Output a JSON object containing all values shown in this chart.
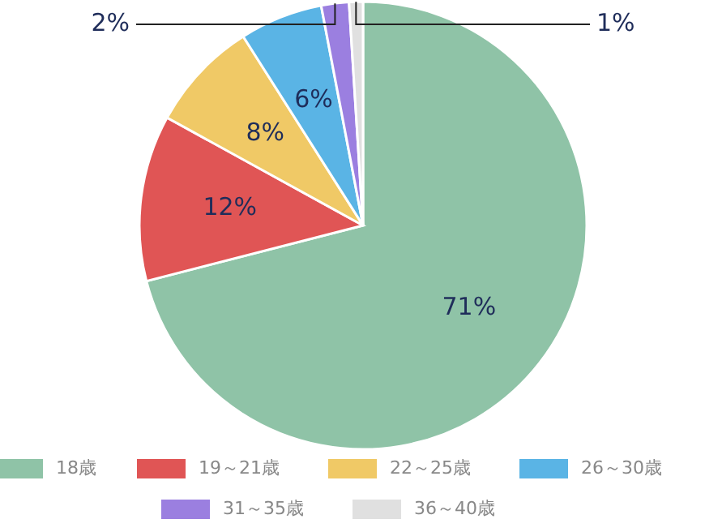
{
  "chart_data": {
    "type": "pie",
    "categories": [
      "18歳",
      "19～21歳",
      "22～25歳",
      "26～30歳",
      "31～35歳",
      "36～40歳"
    ],
    "values": [
      71,
      12,
      8,
      6,
      2,
      1
    ],
    "colors": [
      "#8fc3a7",
      "#e05555",
      "#f0c966",
      "#5ab4e5",
      "#9b7fe0",
      "#e0e0e0"
    ],
    "value_labels": [
      "71%",
      "12%",
      "8%",
      "6%",
      "2%",
      "1%"
    ],
    "legend": "bottom"
  }
}
